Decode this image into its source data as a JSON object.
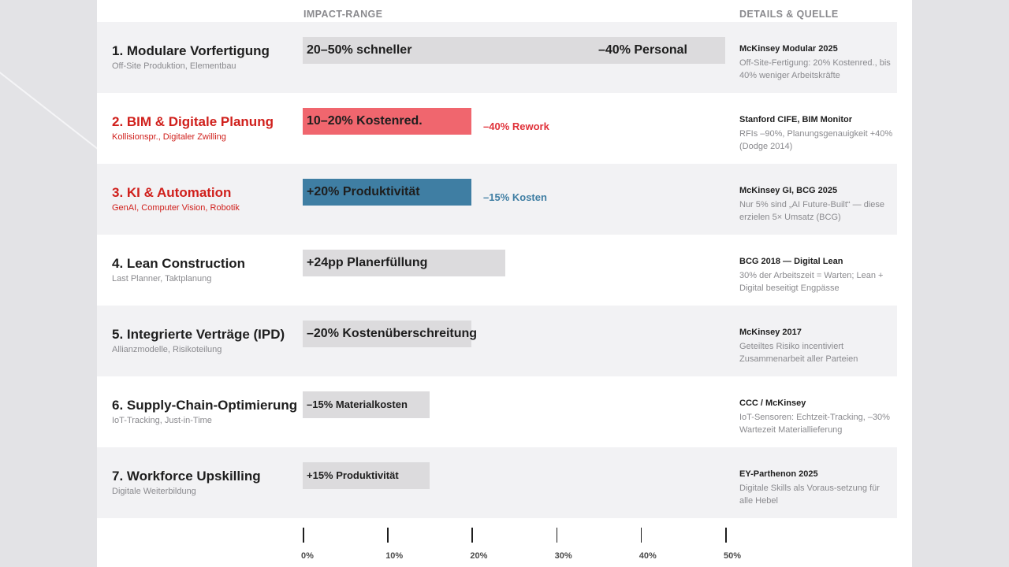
{
  "header": {
    "impact_label": "IMPACT-RANGE",
    "details_label": "DETAILS & QUELLE"
  },
  "chart_data": {
    "type": "bar",
    "orientation": "horizontal",
    "xlim": [
      0,
      50
    ],
    "x_ticks": [
      "0%",
      "10%",
      "20%",
      "30%",
      "40%",
      "50%"
    ],
    "categories": [
      "1. Modulare Vorfertigung",
      "2. BIM & Digitale Planung",
      "3. KI & Automation",
      "4. Lean Construction",
      "5. Integrierte Verträge (IPD)",
      "6. Supply-Chain-Optimierung",
      "7. Workforce Upskilling"
    ],
    "values": [
      50,
      20,
      20,
      24,
      20,
      15,
      15
    ],
    "grid": false,
    "legend": "none"
  },
  "rows": [
    {
      "title": "1. Modulare Vorfertigung",
      "subtitle": "Off-Site Produktion, Elementbau",
      "bar_label": "20–50% schneller",
      "bar_label_2": "–40% Personal",
      "bar_color": "#dcdbdd",
      "source_title": "McKinsey Modular 2025",
      "source_detail": "Off-Site-Fertigung: 20% Kostenred., bis 40% weniger Arbeitskräfte"
    },
    {
      "title": "2. BIM & Digitale Planung",
      "subtitle": "Kollisionspr., Digitaler Zwilling",
      "bar_label": "10–20% Kostenred.",
      "ext_label": "–40% Rework",
      "bar_color": "#f0666e",
      "source_title": "Stanford CIFE, BIM Monitor",
      "source_detail": "RFIs –90%, Planungsgenauigkeit +40% (Dodge 2014)"
    },
    {
      "title": "3. KI & Automation",
      "subtitle": "GenAI, Computer Vision, Robotik",
      "bar_label": "+20% Produktivität",
      "ext_label": "–15% Kosten",
      "bar_color": "#3f7ea3",
      "source_title": "McKinsey GI, BCG 2025",
      "source_detail": "Nur 5% sind „AI Future-Built“ — diese erzielen 5× Umsatz (BCG)"
    },
    {
      "title": "4. Lean Construction",
      "subtitle": "Last Planner, Taktplanung",
      "bar_label": "+24pp Planerfüllung",
      "bar_color": "#dcdbdd",
      "source_title": "BCG 2018 — Digital Lean",
      "source_detail": "30% der Arbeitszeit = Warten; Lean + Digital beseitigt Engpässe"
    },
    {
      "title": "5. Integrierte Verträge (IPD)",
      "subtitle": "Allianzmodelle, Risikoteilung",
      "bar_label": "–20% Kostenüberschreitung",
      "bar_color": "#dcdbdd",
      "source_title": "McKinsey 2017",
      "source_detail": "Geteiltes Risiko incentiviert Zusammenarbeit aller Parteien"
    },
    {
      "title": "6. Supply-Chain-Optimierung",
      "subtitle": "IoT-Tracking, Just-in-Time",
      "bar_label": "–15% Materialkosten",
      "bar_color": "#dcdbdd",
      "source_title": "CCC / McKinsey",
      "source_detail": "IoT-Sensoren: Echtzeit-Tracking, –30% Wartezeit Materiallieferung"
    },
    {
      "title": "7. Workforce Upskilling",
      "subtitle": "Digitale Weiterbildung",
      "bar_label": "+15% Produktivität",
      "bar_color": "#dcdbdd",
      "source_title": "EY-Parthenon 2025",
      "source_detail": "Digitale Skills als Voraus-setzung für alle Hebel"
    }
  ]
}
